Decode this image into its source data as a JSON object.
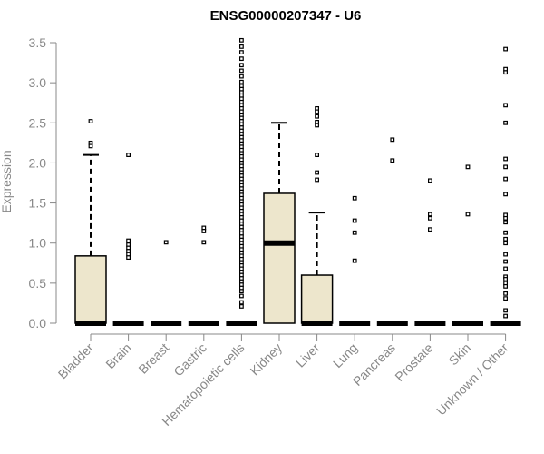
{
  "chart_data": {
    "type": "box",
    "title": "ENSG00000207347 - U6",
    "ylabel": "Expression",
    "xlabel": "",
    "ylim": [
      0,
      3.5
    ],
    "yticks": [
      "0.0",
      "0.5",
      "1.0",
      "1.5",
      "2.0",
      "2.5",
      "3.0",
      "3.5"
    ],
    "grid": false,
    "colors": {
      "box_fill": "#ede6cc",
      "stroke": "#000000",
      "axis": "#888888",
      "label": "#888888"
    },
    "categories": [
      "Bladder",
      "Brain",
      "Breast",
      "Gastric",
      "Hematopoietic cells",
      "Kidney",
      "Liver",
      "Lung",
      "Pancreas",
      "Prostate",
      "Skin",
      "Unknown / Other"
    ],
    "boxes": [
      {
        "category": "Bladder",
        "q1": 0,
        "median": 0,
        "q3": 0.84,
        "whisker_low": 0,
        "whisker_high": 2.1,
        "outliers": [
          2.52,
          2.25,
          2.21
        ]
      },
      {
        "category": "Brain",
        "q1": 0,
        "median": 0,
        "q3": 0,
        "whisker_low": 0,
        "whisker_high": 0,
        "outliers": [
          2.1,
          1.03,
          0.98,
          0.94,
          0.9,
          0.86,
          0.82
        ]
      },
      {
        "category": "Breast",
        "q1": 0,
        "median": 0,
        "q3": 0,
        "whisker_low": 0,
        "whisker_high": 0,
        "outliers": [
          1.01
        ]
      },
      {
        "category": "Gastric",
        "q1": 0,
        "median": 0,
        "q3": 0,
        "whisker_low": 0,
        "whisker_high": 0,
        "outliers": [
          1.19,
          1.15,
          1.01
        ]
      },
      {
        "category": "Hematopoietic cells",
        "q1": 0,
        "median": 0,
        "q3": 0,
        "whisker_low": 0,
        "whisker_high": 0,
        "outliers": [
          3.53,
          3.45,
          3.38,
          3.3,
          3.22,
          3.15,
          3.08,
          3.01,
          2.96,
          2.92,
          2.88,
          2.84,
          2.8,
          2.76,
          2.72,
          2.68,
          2.64,
          2.6,
          2.56,
          2.52,
          2.48,
          2.44,
          2.4,
          2.36,
          2.32,
          2.28,
          2.24,
          2.2,
          2.16,
          2.12,
          2.08,
          2.04,
          2.0,
          1.96,
          1.92,
          1.88,
          1.84,
          1.8,
          1.76,
          1.72,
          1.68,
          1.64,
          1.6,
          1.56,
          1.52,
          1.48,
          1.44,
          1.4,
          1.36,
          1.32,
          1.28,
          1.24,
          1.2,
          1.16,
          1.12,
          1.08,
          1.04,
          1.0,
          0.96,
          0.92,
          0.88,
          0.84,
          0.8,
          0.76,
          0.72,
          0.68,
          0.64,
          0.6,
          0.56,
          0.52,
          0.48,
          0.44,
          0.4,
          0.34,
          0.26,
          0.21
        ]
      },
      {
        "category": "Kidney",
        "q1": 0,
        "median": 1.0,
        "q3": 1.62,
        "whisker_low": 0,
        "whisker_high": 2.5,
        "outliers": []
      },
      {
        "category": "Liver",
        "q1": 0,
        "median": 0,
        "q3": 0.6,
        "whisker_low": 0,
        "whisker_high": 1.38,
        "outliers": [
          2.68,
          2.64,
          2.58,
          2.51,
          2.47,
          2.1,
          1.88,
          1.79
        ]
      },
      {
        "category": "Lung",
        "q1": 0,
        "median": 0,
        "q3": 0,
        "whisker_low": 0,
        "whisker_high": 0,
        "outliers": [
          1.56,
          1.28,
          1.13,
          0.78
        ]
      },
      {
        "category": "Pancreas",
        "q1": 0,
        "median": 0,
        "q3": 0,
        "whisker_low": 0,
        "whisker_high": 0,
        "outliers": [
          2.29,
          2.03
        ]
      },
      {
        "category": "Prostate",
        "q1": 0,
        "median": 0,
        "q3": 0,
        "whisker_low": 0,
        "whisker_high": 0,
        "outliers": [
          1.78,
          1.36,
          1.31,
          1.17
        ]
      },
      {
        "category": "Skin",
        "q1": 0,
        "median": 0,
        "q3": 0,
        "whisker_low": 0,
        "whisker_high": 0,
        "outliers": [
          1.95,
          1.36
        ]
      },
      {
        "category": "Unknown / Other",
        "q1": 0,
        "median": 0,
        "q3": 0,
        "whisker_low": 0,
        "whisker_high": 0,
        "outliers": [
          3.42,
          3.17,
          3.13,
          2.72,
          2.5,
          2.05,
          1.95,
          1.8,
          1.61,
          1.35,
          1.31,
          1.26,
          1.13,
          1.05,
          1.0,
          0.86,
          0.77,
          0.68,
          0.58,
          0.55,
          0.5,
          0.46,
          0.37,
          0.31,
          0.16,
          0.09
        ]
      }
    ]
  }
}
